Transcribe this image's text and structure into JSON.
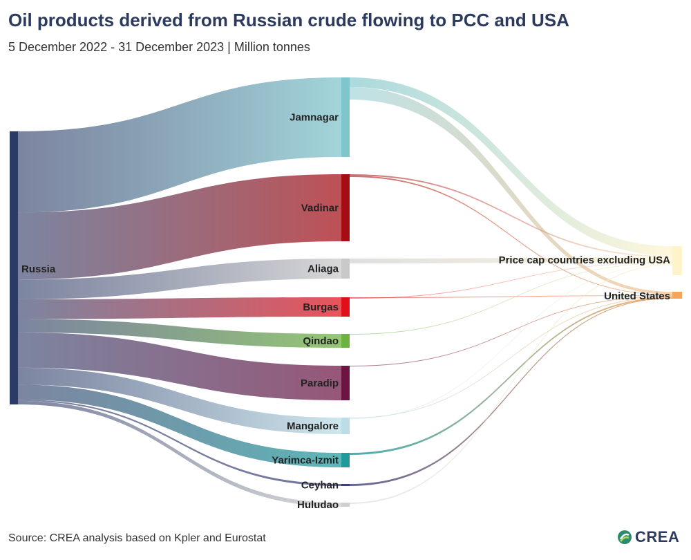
{
  "header": {
    "title": "Oil products derived from Russian crude flowing to PCC and USA",
    "subtitle": "5 December 2022 - 31 December 2023 | Million tonnes"
  },
  "footer": {
    "source": "Source: CREA analysis based on Kpler and Eurostat",
    "logo_text": "CREA"
  },
  "diagram": {
    "type": "sankey",
    "source_node": {
      "name": "Russia",
      "color": "#2c3a66"
    },
    "refineries": [
      {
        "name": "Jamnagar",
        "color": "#7ec5cc",
        "value": 11.5
      },
      {
        "name": "Vadinar",
        "color": "#a50d13",
        "value": 9.5
      },
      {
        "name": "Aliaga",
        "color": "#c9c9c9",
        "value": 2.8
      },
      {
        "name": "Burgas",
        "color": "#e0101a",
        "value": 2.8
      },
      {
        "name": "Qindao",
        "color": "#6bb23e",
        "value": 1.9
      },
      {
        "name": "Paradip",
        "color": "#6e1442",
        "value": 5.0
      },
      {
        "name": "Mangalore",
        "color": "#bcdde7",
        "value": 2.4
      },
      {
        "name": "Yarimca-Izmit",
        "color": "#1e9a9c",
        "value": 2.1
      },
      {
        "name": "Ceyhan",
        "color": "#3d3f7a",
        "value": 0.2
      },
      {
        "name": "Huludao",
        "color": "#cfcfcf",
        "value": 0.5
      }
    ],
    "destinations": [
      {
        "name": "Price cap countries excluding USA",
        "color": "#fff3c9"
      },
      {
        "name": "United States",
        "color": "#f4a55a"
      }
    ]
  }
}
